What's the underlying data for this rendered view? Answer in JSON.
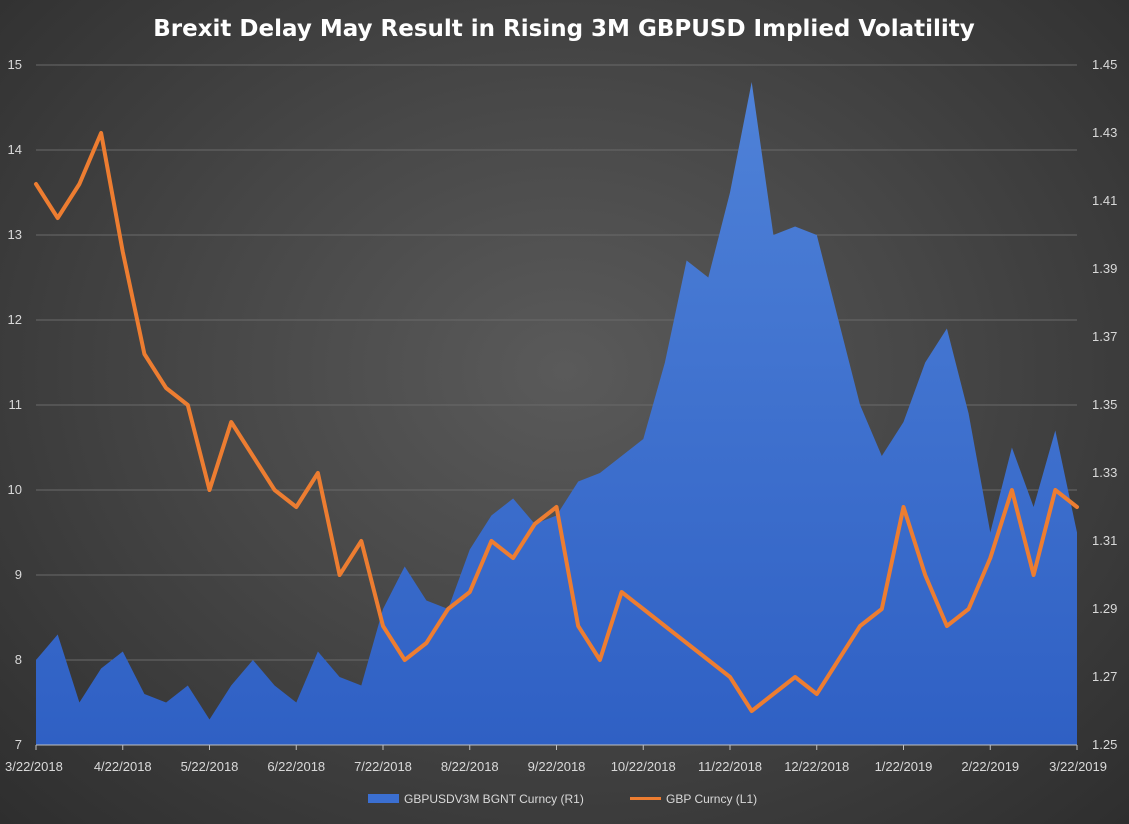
{
  "chart_data": {
    "type": "area",
    "title": "Brexit Delay May Result in Rising 3M GBPUSD Implied Volatility",
    "grid": true,
    "legend_position": "bottom",
    "colors": {
      "area": "#3b6fd1",
      "area_top": "#4e80d6",
      "line": "#ed7d31",
      "grid": "#6a6a6a",
      "text": "#d9d9d9"
    },
    "x_tick_labels": [
      "3/22/2018",
      "4/22/2018",
      "5/22/2018",
      "6/22/2018",
      "7/22/2018",
      "8/22/2018",
      "9/22/2018",
      "10/22/2018",
      "11/22/2018",
      "12/22/2018",
      "1/22/2019",
      "2/22/2019",
      "3/22/2019"
    ],
    "left_axis": {
      "ticks": [
        "7",
        "8",
        "9",
        "10",
        "11",
        "12",
        "13",
        "14",
        "15"
      ],
      "range": [
        7,
        15
      ]
    },
    "right_axis": {
      "ticks": [
        "1.25",
        "1.27",
        "1.29",
        "1.31",
        "1.33",
        "1.35",
        "1.37",
        "1.39",
        "1.41",
        "1.43",
        "1.45"
      ],
      "range": [
        1.25,
        1.45
      ]
    },
    "x": [
      0,
      0.25,
      0.5,
      0.75,
      1,
      1.25,
      1.5,
      1.75,
      2,
      2.25,
      2.5,
      2.75,
      3,
      3.25,
      3.5,
      3.75,
      4,
      4.25,
      4.5,
      4.75,
      5,
      5.25,
      5.5,
      5.75,
      6,
      6.25,
      6.5,
      6.75,
      7,
      7.25,
      7.5,
      7.75,
      8,
      8.25,
      8.5,
      8.75,
      9,
      9.25,
      9.5,
      9.75,
      10,
      10.25,
      10.5,
      10.75,
      11,
      11.25,
      11.5,
      11.75,
      12
    ],
    "series": [
      {
        "name": "GBPUSDV3M BGNT Curncy  (R1)",
        "kind": "area",
        "values": [
          8.0,
          8.3,
          7.5,
          7.9,
          8.1,
          7.6,
          7.5,
          7.7,
          7.3,
          7.7,
          8.0,
          7.7,
          7.5,
          8.1,
          7.8,
          7.7,
          8.6,
          9.1,
          8.7,
          8.6,
          9.3,
          9.7,
          9.9,
          9.6,
          9.7,
          10.1,
          10.2,
          10.4,
          10.6,
          11.5,
          12.7,
          12.5,
          13.5,
          14.8,
          13.0,
          13.1,
          13.0,
          12.0,
          11.0,
          10.4,
          10.8,
          11.5,
          11.9,
          10.9,
          9.5,
          10.5,
          9.8,
          10.7,
          9.5
        ]
      },
      {
        "name": "GBP Curncy  (L1)",
        "kind": "line",
        "values": [
          1.415,
          1.405,
          1.415,
          1.43,
          1.395,
          1.365,
          1.355,
          1.35,
          1.325,
          1.345,
          1.335,
          1.325,
          1.32,
          1.33,
          1.3,
          1.31,
          1.285,
          1.275,
          1.28,
          1.29,
          1.295,
          1.31,
          1.305,
          1.315,
          1.32,
          1.285,
          1.275,
          1.295,
          1.29,
          1.285,
          1.28,
          1.275,
          1.27,
          1.26,
          1.265,
          1.27,
          1.265,
          1.275,
          1.285,
          1.29,
          1.32,
          1.3,
          1.285,
          1.29,
          1.305,
          1.325,
          1.3,
          1.325,
          1.32
        ]
      }
    ]
  }
}
